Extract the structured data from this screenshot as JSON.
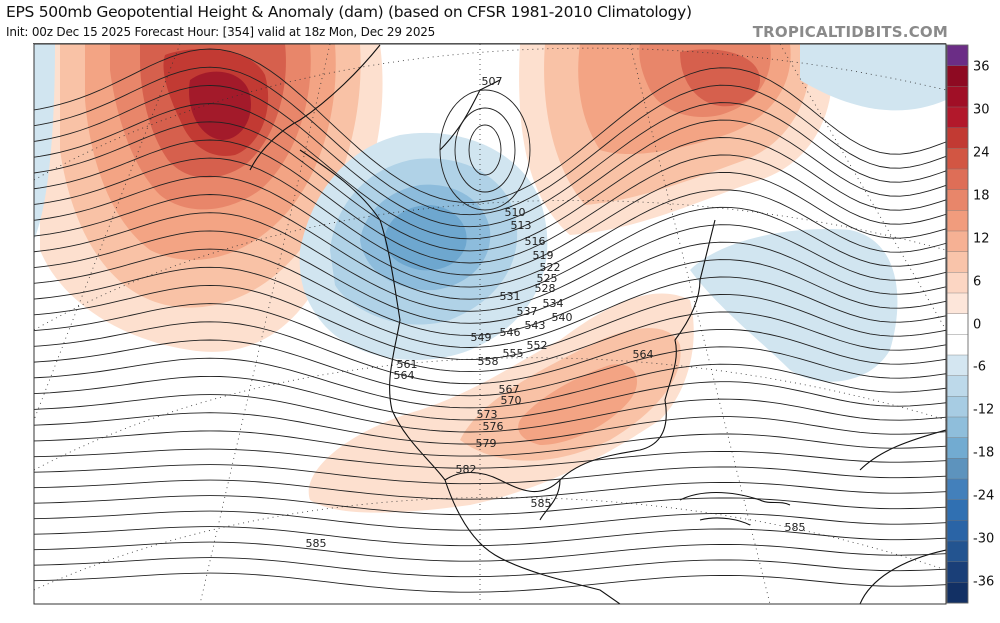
{
  "header": {
    "title": "EPS 500mb Geopotential Height & Anomaly (dam) (based on CFSR 1981-2010 Climatology)",
    "subtitle": "Init: 00z Dec 15 2025   Forecast Hour: [354]   valid at 18z Mon, Dec 29 2025",
    "watermark": "TROPICALTIDBITS.COM"
  },
  "colorbar": {
    "ticks": [
      "36",
      "30",
      "24",
      "18",
      "12",
      "6",
      "0",
      "-6",
      "-12",
      "-18",
      "-24",
      "-30",
      "-36"
    ],
    "colors": [
      "#6b2d86",
      "#8e0a22",
      "#a00f26",
      "#b2182b",
      "#c23a33",
      "#d25643",
      "#de6e57",
      "#e8866a",
      "#f19c7d",
      "#f6b194",
      "#f9c4aa",
      "#fcd6c3",
      "#fde6da",
      "#ffffff",
      "#ffffff",
      "#d4e6f1",
      "#bdd9ea",
      "#a7cce3",
      "#8fbedb",
      "#72abd1",
      "#5d93bd",
      "#4380bb",
      "#3070b2",
      "#2a64a6",
      "#235490",
      "#1a3f78",
      "#123064"
    ]
  },
  "map": {
    "contour_labels": [
      "507",
      "510",
      "513",
      "516",
      "519",
      "522",
      "525",
      "528",
      "531",
      "534",
      "537",
      "540",
      "543",
      "546",
      "549",
      "552",
      "555",
      "558",
      "561",
      "564",
      "564",
      "567",
      "570",
      "573",
      "576",
      "579",
      "582",
      "585",
      "585",
      "585"
    ],
    "anomaly_colors": {
      "warm1": "#fde0cf",
      "warm2": "#f9c2a6",
      "warm3": "#f3a484",
      "warm4": "#e8866a",
      "warm5": "#d6604d",
      "warm6": "#c23a33",
      "warm7": "#a31a2a",
      "cool1": "#d1e5f0",
      "cool2": "#b0d2e7",
      "cool3": "#8dbcdc",
      "cool4": "#6ea7cf"
    }
  }
}
